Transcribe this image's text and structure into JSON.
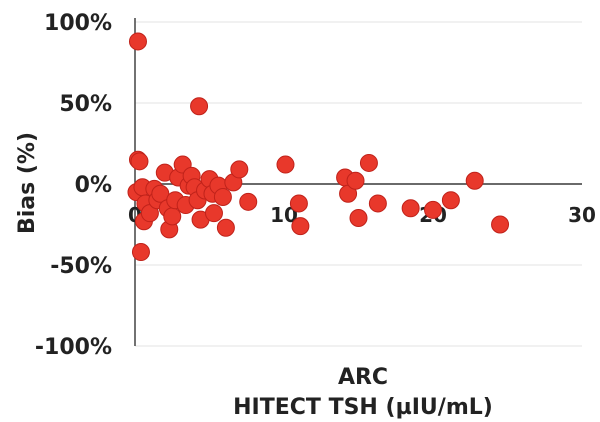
{
  "chart_data": {
    "type": "scatter",
    "xlabel_lines": [
      "ARC",
      "HITECT TSH (µIU/mL)"
    ],
    "ylabel": "Bias (%)",
    "xlim": [
      0,
      30
    ],
    "ylim": [
      -100,
      100
    ],
    "x_ticks": [
      {
        "value": 0,
        "label": "0"
      },
      {
        "value": 10,
        "label": "10"
      },
      {
        "value": 20,
        "label": "20"
      },
      {
        "value": 30,
        "label": "30"
      }
    ],
    "y_ticks": [
      {
        "value": 100,
        "label": "100%"
      },
      {
        "value": 50,
        "label": "50%"
      },
      {
        "value": 0,
        "label": "0%"
      },
      {
        "value": -50,
        "label": "-50%"
      },
      {
        "value": -100,
        "label": "-100%"
      }
    ],
    "grid": "horizontal",
    "marker_color": "#e8382b",
    "marker_edge": "#c0221a",
    "points": [
      {
        "x": 0.2,
        "y": 88
      },
      {
        "x": 4.3,
        "y": 48
      },
      {
        "x": 0.2,
        "y": 15
      },
      {
        "x": 0.3,
        "y": 14
      },
      {
        "x": 0.1,
        "y": -5
      },
      {
        "x": 0.5,
        "y": -2
      },
      {
        "x": 0.7,
        "y": -12
      },
      {
        "x": 0.6,
        "y": -23
      },
      {
        "x": 0.4,
        "y": -42
      },
      {
        "x": 1.0,
        "y": -18
      },
      {
        "x": 1.3,
        "y": -3
      },
      {
        "x": 1.5,
        "y": -10
      },
      {
        "x": 1.7,
        "y": -6
      },
      {
        "x": 2.0,
        "y": 7
      },
      {
        "x": 2.2,
        "y": -15
      },
      {
        "x": 2.3,
        "y": -28
      },
      {
        "x": 2.5,
        "y": -20
      },
      {
        "x": 2.7,
        "y": -10
      },
      {
        "x": 2.9,
        "y": 4
      },
      {
        "x": 3.2,
        "y": 12
      },
      {
        "x": 3.4,
        "y": -13
      },
      {
        "x": 3.6,
        "y": -1
      },
      {
        "x": 3.8,
        "y": 5
      },
      {
        "x": 4.0,
        "y": -2
      },
      {
        "x": 4.2,
        "y": -10
      },
      {
        "x": 4.4,
        "y": -22
      },
      {
        "x": 4.7,
        "y": -4
      },
      {
        "x": 5.0,
        "y": 3
      },
      {
        "x": 5.2,
        "y": -6
      },
      {
        "x": 5.3,
        "y": -18
      },
      {
        "x": 5.6,
        "y": -1
      },
      {
        "x": 5.9,
        "y": -8
      },
      {
        "x": 6.1,
        "y": -27
      },
      {
        "x": 6.6,
        "y": 1
      },
      {
        "x": 7.0,
        "y": 9
      },
      {
        "x": 7.6,
        "y": -11
      },
      {
        "x": 10.1,
        "y": 12
      },
      {
        "x": 11.0,
        "y": -12
      },
      {
        "x": 11.1,
        "y": -26
      },
      {
        "x": 14.1,
        "y": 4
      },
      {
        "x": 14.3,
        "y": -6
      },
      {
        "x": 14.8,
        "y": 2
      },
      {
        "x": 15.0,
        "y": -21
      },
      {
        "x": 15.7,
        "y": 13
      },
      {
        "x": 16.3,
        "y": -12
      },
      {
        "x": 18.5,
        "y": -15
      },
      {
        "x": 20.0,
        "y": -16
      },
      {
        "x": 21.2,
        "y": -10
      },
      {
        "x": 22.8,
        "y": 2
      },
      {
        "x": 24.5,
        "y": -25
      }
    ]
  }
}
